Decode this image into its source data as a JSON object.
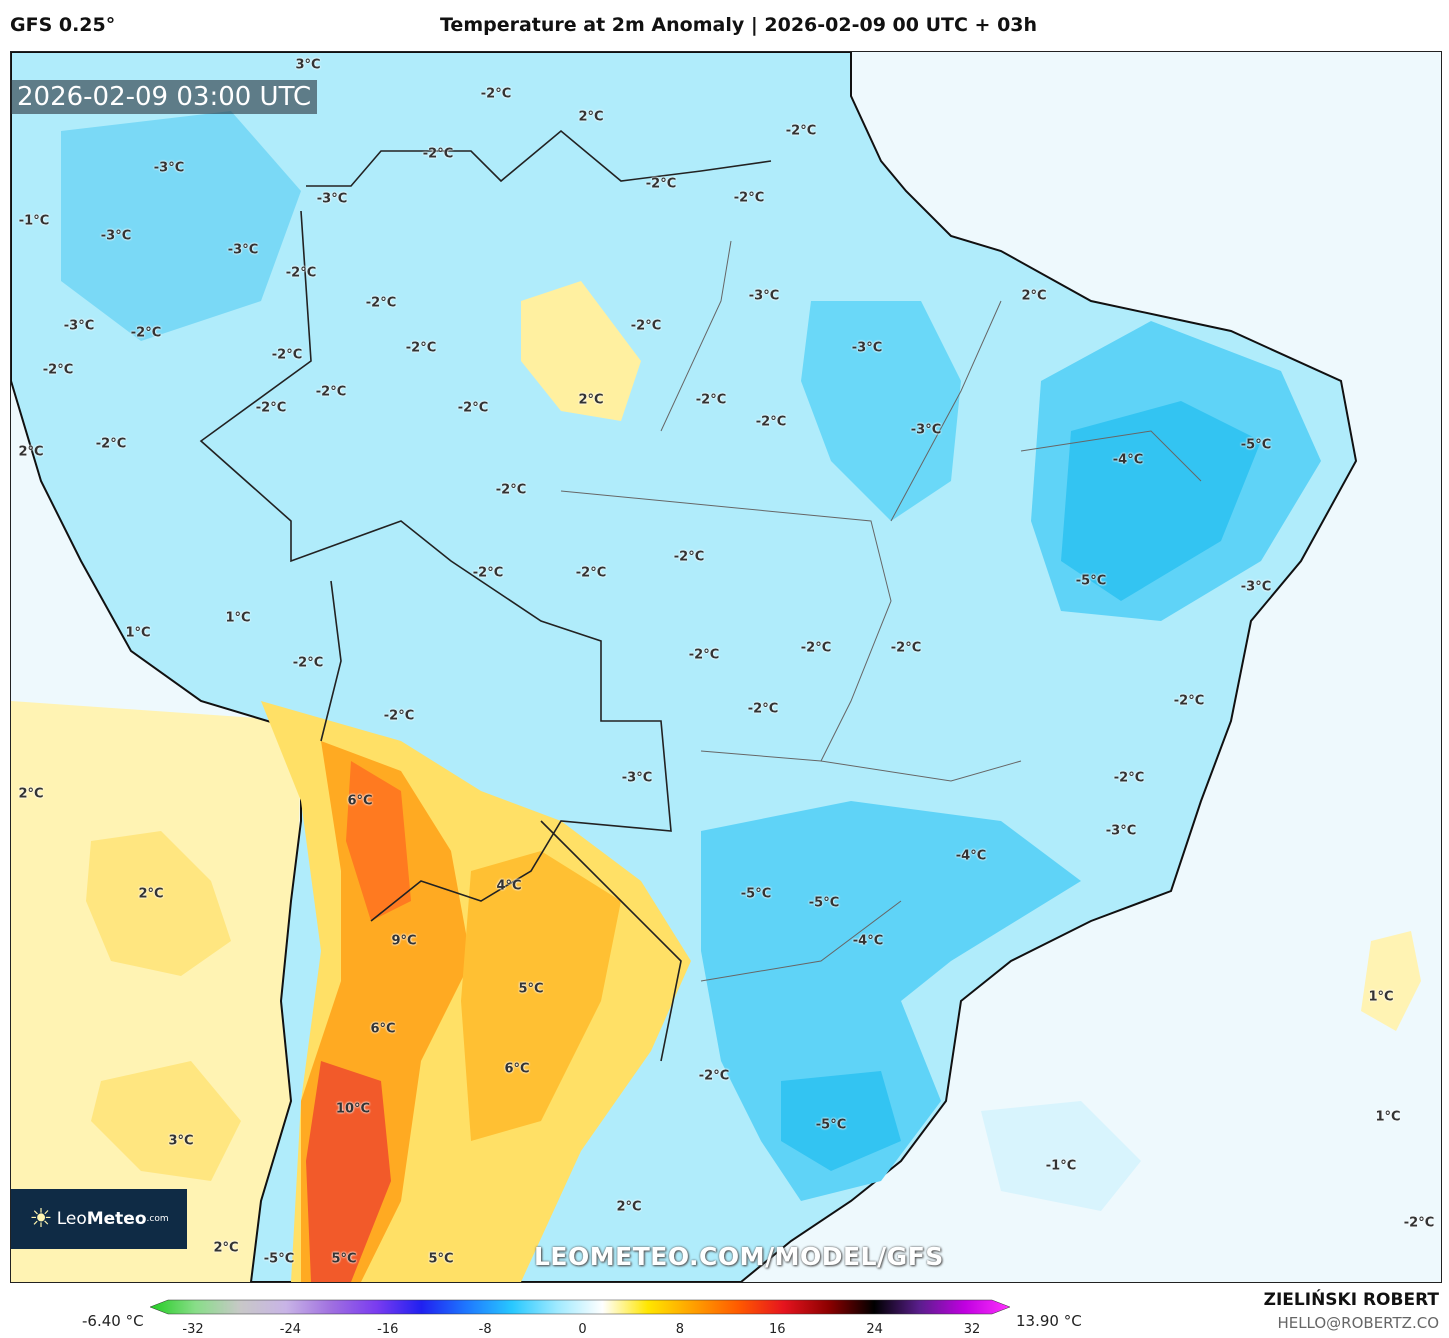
{
  "header": {
    "model": "GFS 0.25°",
    "title": "Temperature at 2m Anomaly | 2026-02-09 00 UTC + 03h"
  },
  "map": {
    "timestamp": "2026-02-09 03:00 UTC",
    "watermark": "LEOMETEO.COM/MODEL/GFS",
    "logo": {
      "name": "Leo",
      "bold": "Meteo",
      "suffix": ".com"
    },
    "contour_labels": [
      "3°C",
      "-2°C",
      "2°C",
      "-2°C",
      "-2°C",
      "-3°C",
      "-2°C",
      "-2°C",
      "-3°C",
      "-1°C",
      "-3°C",
      "-3°C",
      "-2°C",
      "-2°C",
      "-3°C",
      "2°C",
      "-3°C",
      "-2°C",
      "-2°C",
      "-2°C",
      "-2°C",
      "-3°C",
      "-2°C",
      "-2°C",
      "2°C",
      "-2°C",
      "-2°C",
      "-2°C",
      "-2°C",
      "-3°C",
      "-5°C",
      "-2°C",
      "2°C",
      "-4°C",
      "-2°C",
      "-2°C",
      "-2°C",
      "-2°C",
      "-5°C",
      "-3°C",
      "1°C",
      "1°C",
      "-2°C",
      "-2°C",
      "-2°C",
      "-2°C",
      "-2°C",
      "-2°C",
      "-2°C",
      "-3°C",
      "-2°C",
      "2°C",
      "6°C",
      "-3°C",
      "-4°C",
      "4°C",
      "2°C",
      "-5°C",
      "-5°C",
      "9°C",
      "-4°C",
      "1°C",
      "5°C",
      "6°C",
      "6°C",
      "-2°C",
      "10°C",
      "3°C",
      "1°C",
      "-5°C",
      "-1°C",
      "2°C",
      "-2°C",
      "2°C",
      "-5°C",
      "5°C",
      "5°C"
    ]
  },
  "colorbar": {
    "min_label": "-6.40 °C",
    "max_label": "13.90 °C",
    "ticks": [
      "-32",
      "-24",
      "-16",
      "-8",
      "0",
      "8",
      "16",
      "24",
      "32"
    ],
    "colors": [
      "#22cc22",
      "#88dd88",
      "#c8c8c8",
      "#c8b4e6",
      "#a070e0",
      "#7a3cf0",
      "#2020f0",
      "#1e78ff",
      "#28c8ff",
      "#a0eaff",
      "#ffffff",
      "#ffe600",
      "#ffa000",
      "#ff5a00",
      "#e6141e",
      "#8c0000",
      "#000000",
      "#5a1e8c",
      "#c000e0",
      "#ff30ff"
    ]
  },
  "footer": {
    "author": "ZIELIŃSKI ROBERT",
    "email": "HELLO@ROBERTZ.CO"
  }
}
